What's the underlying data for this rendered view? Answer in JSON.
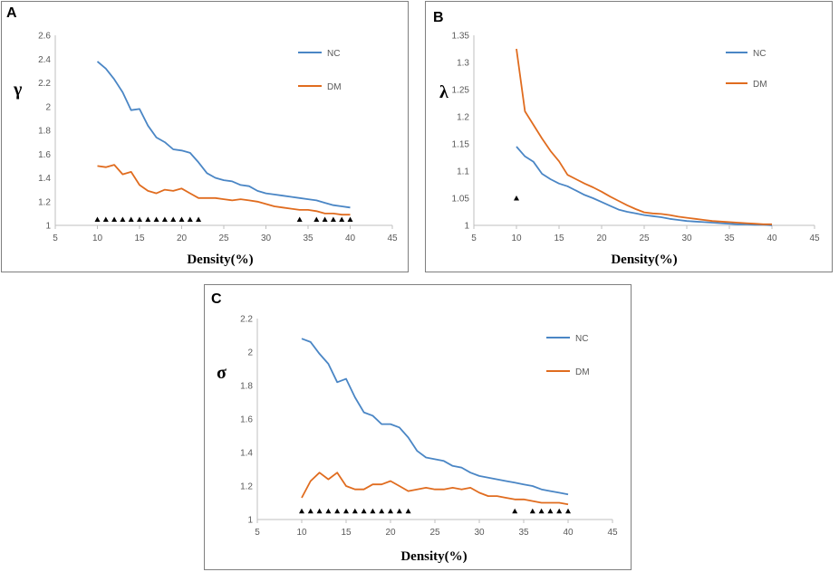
{
  "colors": {
    "nc": "#4a86c5",
    "dm": "#e06c1f",
    "marker": "#000000",
    "frame": "#7f7f7f",
    "axis": "#bfbfbf"
  },
  "chart_data": [
    {
      "panel": "A",
      "type": "line",
      "xlabel": "Density(%)",
      "ylabel": "γ",
      "xlim": [
        5,
        45
      ],
      "ylim": [
        1,
        2.6
      ],
      "xticks": [
        "5",
        "10",
        "15",
        "20",
        "25",
        "30",
        "35",
        "40",
        "45"
      ],
      "yticks": [
        "1",
        "1.2",
        "1.4",
        "1.6",
        "1.8",
        "2",
        "2.2",
        "2.4",
        "2.6"
      ],
      "legend": [
        "NC",
        "DM"
      ],
      "x": [
        10,
        11,
        12,
        13,
        14,
        15,
        16,
        17,
        18,
        19,
        20,
        21,
        22,
        23,
        24,
        25,
        26,
        27,
        28,
        29,
        30,
        31,
        32,
        33,
        34,
        35,
        36,
        37,
        38,
        39,
        40
      ],
      "series": [
        {
          "name": "NC",
          "values": [
            2.38,
            2.32,
            2.23,
            2.12,
            1.97,
            1.98,
            1.84,
            1.74,
            1.7,
            1.64,
            1.63,
            1.61,
            1.53,
            1.44,
            1.4,
            1.38,
            1.37,
            1.34,
            1.33,
            1.29,
            1.27,
            1.26,
            1.25,
            1.24,
            1.23,
            1.22,
            1.21,
            1.19,
            1.17,
            1.16,
            1.15
          ]
        },
        {
          "name": "DM",
          "values": [
            1.5,
            1.49,
            1.51,
            1.43,
            1.45,
            1.34,
            1.29,
            1.27,
            1.3,
            1.29,
            1.31,
            1.27,
            1.23,
            1.23,
            1.23,
            1.22,
            1.21,
            1.22,
            1.21,
            1.2,
            1.18,
            1.16,
            1.15,
            1.14,
            1.13,
            1.13,
            1.12,
            1.1,
            1.1,
            1.09,
            1.09
          ]
        }
      ],
      "markers": {
        "y": 1.05,
        "x": [
          10,
          11,
          12,
          13,
          14,
          15,
          16,
          17,
          18,
          19,
          20,
          21,
          22,
          34,
          36,
          37,
          38,
          39,
          40
        ]
      }
    },
    {
      "panel": "B",
      "type": "line",
      "xlabel": "Density(%)",
      "ylabel": "λ",
      "xlim": [
        5,
        45
      ],
      "ylim": [
        1,
        1.35
      ],
      "xticks": [
        "5",
        "10",
        "15",
        "20",
        "25",
        "30",
        "35",
        "40",
        "45"
      ],
      "yticks": [
        "1",
        "1.05",
        "1.1",
        "1.15",
        "1.2",
        "1.25",
        "1.3",
        "1.35"
      ],
      "legend": [
        "NC",
        "DM"
      ],
      "x": [
        10,
        11,
        12,
        13,
        14,
        15,
        16,
        17,
        18,
        19,
        20,
        21,
        22,
        23,
        24,
        25,
        26,
        27,
        28,
        29,
        30,
        31,
        32,
        33,
        34,
        35,
        36,
        37,
        38,
        39,
        40
      ],
      "series": [
        {
          "name": "NC",
          "values": [
            1.145,
            1.127,
            1.117,
            1.095,
            1.085,
            1.077,
            1.072,
            1.064,
            1.056,
            1.05,
            1.043,
            1.036,
            1.029,
            1.025,
            1.022,
            1.019,
            1.017,
            1.015,
            1.012,
            1.01,
            1.008,
            1.007,
            1.006,
            1.005,
            1.004,
            1.003,
            1.002,
            1.002,
            1.001,
            1.001,
            1.0
          ]
        },
        {
          "name": "DM",
          "values": [
            1.325,
            1.21,
            1.185,
            1.16,
            1.137,
            1.118,
            1.093,
            1.085,
            1.077,
            1.07,
            1.062,
            1.053,
            1.045,
            1.037,
            1.03,
            1.024,
            1.022,
            1.021,
            1.019,
            1.016,
            1.014,
            1.012,
            1.01,
            1.008,
            1.007,
            1.006,
            1.005,
            1.004,
            1.003,
            1.002,
            1.002
          ]
        }
      ],
      "markers": {
        "y": 1.05,
        "x": [
          10
        ]
      }
    },
    {
      "panel": "C",
      "type": "line",
      "xlabel": "Density(%)",
      "ylabel": "σ",
      "xlim": [
        5,
        45
      ],
      "ylim": [
        1,
        2.2
      ],
      "xticks": [
        "5",
        "10",
        "15",
        "20",
        "25",
        "30",
        "35",
        "40",
        "45"
      ],
      "yticks": [
        "1",
        "1.2",
        "1.4",
        "1.6",
        "1.8",
        "2",
        "2.2"
      ],
      "legend": [
        "NC",
        "DM"
      ],
      "x": [
        10,
        11,
        12,
        13,
        14,
        15,
        16,
        17,
        18,
        19,
        20,
        21,
        22,
        23,
        24,
        25,
        26,
        27,
        28,
        29,
        30,
        31,
        32,
        33,
        34,
        35,
        36,
        37,
        38,
        39,
        40
      ],
      "series": [
        {
          "name": "NC",
          "values": [
            2.08,
            2.06,
            1.99,
            1.93,
            1.82,
            1.84,
            1.73,
            1.64,
            1.62,
            1.57,
            1.57,
            1.55,
            1.49,
            1.41,
            1.37,
            1.36,
            1.35,
            1.32,
            1.31,
            1.28,
            1.26,
            1.25,
            1.24,
            1.23,
            1.22,
            1.21,
            1.2,
            1.18,
            1.17,
            1.16,
            1.15
          ]
        },
        {
          "name": "DM",
          "values": [
            1.13,
            1.23,
            1.28,
            1.24,
            1.28,
            1.2,
            1.18,
            1.18,
            1.21,
            1.21,
            1.23,
            1.2,
            1.17,
            1.18,
            1.19,
            1.18,
            1.18,
            1.19,
            1.18,
            1.19,
            1.16,
            1.14,
            1.14,
            1.13,
            1.12,
            1.12,
            1.11,
            1.1,
            1.1,
            1.1,
            1.09
          ]
        }
      ],
      "markers": {
        "y": 1.05,
        "x": [
          10,
          11,
          12,
          13,
          14,
          15,
          16,
          17,
          18,
          19,
          20,
          21,
          22,
          34,
          36,
          37,
          38,
          39,
          40
        ]
      }
    }
  ]
}
